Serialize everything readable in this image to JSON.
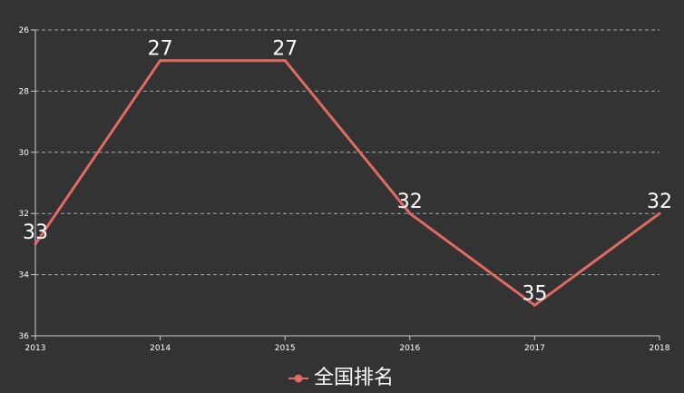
{
  "chart_data": {
    "type": "line",
    "categories": [
      "2013",
      "2014",
      "2015",
      "2016",
      "2017",
      "2018"
    ],
    "series": [
      {
        "name": "全国排名",
        "values": [
          33,
          27,
          27,
          32,
          35,
          32
        ],
        "color": "#e06b62"
      }
    ],
    "ylim": [
      26,
      36
    ],
    "y_inverted": true,
    "y_ticks": [
      "26",
      "28",
      "30",
      "32",
      "34",
      "36"
    ],
    "grid": true,
    "legend_position": "bottom-center",
    "title": "",
    "xlabel": "",
    "ylabel": ""
  },
  "colors": {
    "background": "#333333",
    "axis": "#cccccc",
    "grid": "#aaaaaa",
    "text": "#ffffff"
  }
}
